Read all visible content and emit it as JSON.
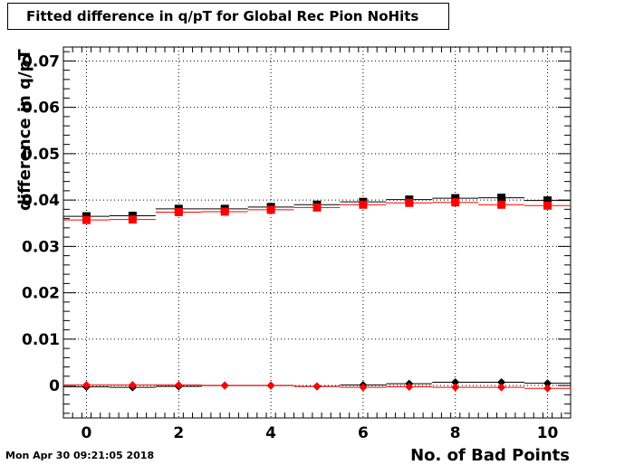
{
  "timestamp": "Mon Apr 30 09:21:05 2018",
  "chart_data": {
    "type": "scatter",
    "title": "Fitted difference in q/pT for Global Rec Pion NoHits",
    "xlabel": "No. of Bad Points",
    "ylabel": "difference in q/pT",
    "xlim": [
      -0.5,
      10.5
    ],
    "ylim": [
      -0.007,
      0.073
    ],
    "grid": true,
    "x_ticks": [
      0,
      2,
      4,
      6,
      8,
      10
    ],
    "y_ticks": [
      0,
      0.01,
      0.02,
      0.03,
      0.04,
      0.05,
      0.06,
      0.07
    ],
    "y_tick_labels": [
      "0",
      "0.01",
      "0.02",
      "0.03",
      "0.04",
      "0.05",
      "0.06",
      "0.07"
    ],
    "x": [
      0,
      1,
      2,
      3,
      4,
      5,
      6,
      7,
      8,
      9,
      10
    ],
    "series": [
      {
        "marker": "square",
        "color": "#000000",
        "values": [
          0.0365,
          0.0366,
          0.0381,
          0.0381,
          0.0385,
          0.039,
          0.0396,
          0.0401,
          0.0404,
          0.0405,
          0.0399
        ]
      },
      {
        "marker": "square",
        "color": "#ff0000",
        "values": [
          0.0357,
          0.0358,
          0.0374,
          0.0375,
          0.0379,
          0.0384,
          0.039,
          0.0394,
          0.0395,
          0.039,
          0.0388
        ]
      },
      {
        "marker": "diamond",
        "color": "#000000",
        "values": [
          -0.0003,
          -0.0004,
          -0.0002,
          0.0,
          0.0,
          -0.0002,
          0.0001,
          0.0004,
          0.0007,
          0.0007,
          0.0005
        ]
      },
      {
        "marker": "diamond",
        "color": "#ff0000",
        "values": [
          0.0001,
          0.0001,
          0.0001,
          0.0,
          0.0,
          -0.0002,
          -0.0004,
          -0.0003,
          -0.0004,
          -0.0004,
          -0.0006
        ]
      }
    ]
  }
}
